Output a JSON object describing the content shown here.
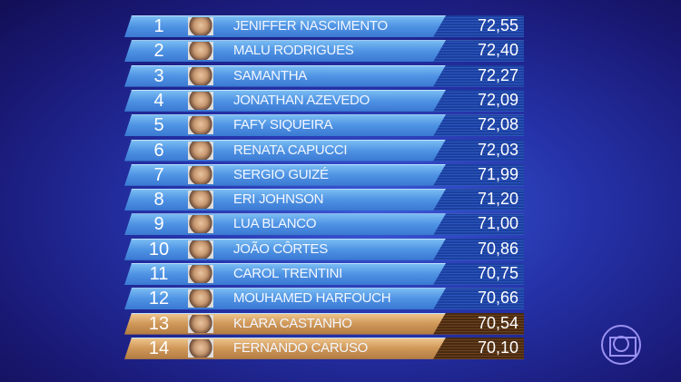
{
  "ranking": [
    {
      "rank": "1",
      "name": "JENIFFER NASCIMENTO",
      "score": "72,55",
      "highlight": false
    },
    {
      "rank": "2",
      "name": "MALU RODRIGUES",
      "score": "72,40",
      "highlight": false
    },
    {
      "rank": "3",
      "name": "SAMANTHA",
      "score": "72,27",
      "highlight": false
    },
    {
      "rank": "4",
      "name": "JONATHAN AZEVEDO",
      "score": "72,09",
      "highlight": false
    },
    {
      "rank": "5",
      "name": "FAFY SIQUEIRA",
      "score": "72,08",
      "highlight": false
    },
    {
      "rank": "6",
      "name": "RENATA CAPUCCI",
      "score": "72,03",
      "highlight": false
    },
    {
      "rank": "7",
      "name": "SERGIO GUIZÉ",
      "score": "71,99",
      "highlight": false
    },
    {
      "rank": "8",
      "name": "ERI JOHNSON",
      "score": "71,20",
      "highlight": false
    },
    {
      "rank": "9",
      "name": "LUA BLANCO",
      "score": "71,00",
      "highlight": false
    },
    {
      "rank": "10",
      "name": "JOÃO CÔRTES",
      "score": "70,86",
      "highlight": false
    },
    {
      "rank": "11",
      "name": "CAROL TRENTINI",
      "score": "70,75",
      "highlight": false
    },
    {
      "rank": "12",
      "name": "MOUHAMED HARFOUCH",
      "score": "70,66",
      "highlight": false
    },
    {
      "rank": "13",
      "name": "KLARA CASTANHO",
      "score": "70,54",
      "highlight": true
    },
    {
      "rank": "14",
      "name": "FERNANDO CARUSO",
      "score": "70,10",
      "highlight": true
    }
  ],
  "colors": {
    "blue_row": "#4f93e4",
    "gold_row": "#cf9758",
    "background": "#2532a8"
  },
  "logo": "globo-logo"
}
